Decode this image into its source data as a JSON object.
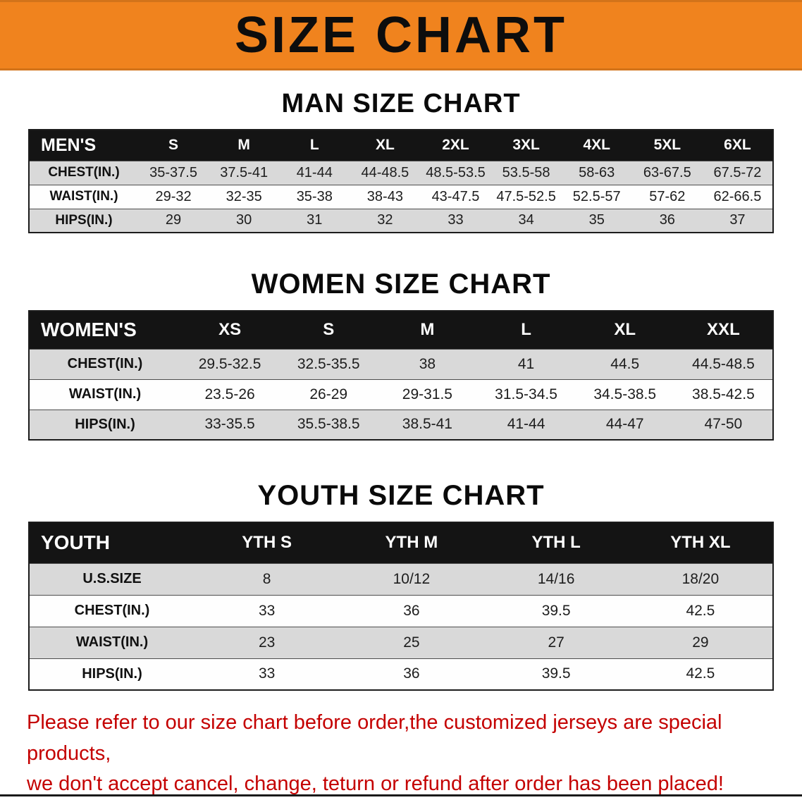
{
  "banner": {
    "title": "SIZE CHART"
  },
  "colors": {
    "banner_bg": "#F0831E",
    "table_header_bg": "#141414",
    "row_alt_bg": "#D9D9D9",
    "notice_text": "#C40000"
  },
  "sections": [
    {
      "id": "men",
      "title": "MAN SIZE CHART",
      "table": {
        "header": [
          "MEN'S",
          "S",
          "M",
          "L",
          "XL",
          "2XL",
          "3XL",
          "4XL",
          "5XL",
          "6XL"
        ],
        "rows": [
          [
            "CHEST(IN.)",
            "35-37.5",
            "37.5-41",
            "41-44",
            "44-48.5",
            "48.5-53.5",
            "53.5-58",
            "58-63",
            "63-67.5",
            "67.5-72"
          ],
          [
            "WAIST(IN.)",
            "29-32",
            "32-35",
            "35-38",
            "38-43",
            "43-47.5",
            "47.5-52.5",
            "52.5-57",
            "57-62",
            "62-66.5"
          ],
          [
            "HIPS(IN.)",
            "29",
            "30",
            "31",
            "32",
            "33",
            "34",
            "35",
            "36",
            "37"
          ]
        ]
      }
    },
    {
      "id": "women",
      "title": "WOMEN SIZE CHART",
      "table": {
        "header": [
          "WOMEN'S",
          "XS",
          "S",
          "M",
          "L",
          "XL",
          "XXL"
        ],
        "rows": [
          [
            "CHEST(IN.)",
            "29.5-32.5",
            "32.5-35.5",
            "38",
            "41",
            "44.5",
            "44.5-48.5"
          ],
          [
            "WAIST(IN.)",
            "23.5-26",
            "26-29",
            "29-31.5",
            "31.5-34.5",
            "34.5-38.5",
            "38.5-42.5"
          ],
          [
            "HIPS(IN.)",
            "33-35.5",
            "35.5-38.5",
            "38.5-41",
            "41-44",
            "44-47",
            "47-50"
          ]
        ]
      }
    },
    {
      "id": "youth",
      "title": "YOUTH SIZE CHART",
      "table": {
        "header": [
          "YOUTH",
          "YTH S",
          "YTH M",
          "YTH L",
          "YTH XL"
        ],
        "rows": [
          [
            "U.S.SIZE",
            "8",
            "10/12",
            "14/16",
            "18/20"
          ],
          [
            "CHEST(IN.)",
            "33",
            "36",
            "39.5",
            "42.5"
          ],
          [
            "WAIST(IN.)",
            "23",
            "25",
            "27",
            "29"
          ],
          [
            "HIPS(IN.)",
            "33",
            "36",
            "39.5",
            "42.5"
          ]
        ]
      }
    }
  ],
  "footer": {
    "line1": "Please refer to our size chart before order,the customized jerseys are special products,",
    "line2": "we don't accept cancel, change, teturn or refund after order has been placed!"
  }
}
